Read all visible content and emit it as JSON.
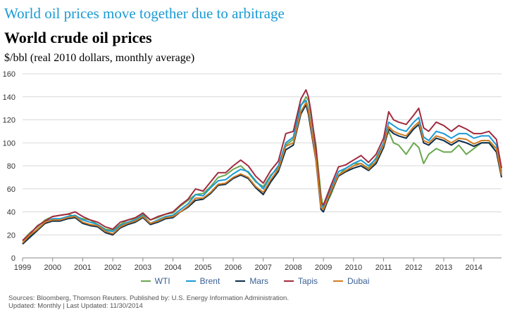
{
  "headline": "World oil prices move together due to arbitrage",
  "chart_data": {
    "type": "line",
    "title": "World crude oil prices",
    "subtitle": "$/bbl (real 2010 dollars, monthly average)",
    "xlabel": "",
    "ylabel": "$/bbl",
    "ylim": [
      0,
      160
    ],
    "yticks": [
      0,
      20,
      40,
      60,
      80,
      100,
      120,
      140,
      160
    ],
    "xlim": [
      1999,
      2014.92
    ],
    "xticks": [
      "1999",
      "2000",
      "2001",
      "2002",
      "2003",
      "2004",
      "2005",
      "2006",
      "2007",
      "2008",
      "2009",
      "2010",
      "2011",
      "2012",
      "2013",
      "2014"
    ],
    "grid": "horizontal",
    "legend_position": "bottom-center",
    "x": [
      1999.0,
      1999.25,
      1999.5,
      1999.75,
      2000.0,
      2000.25,
      2000.5,
      2000.75,
      2001.0,
      2001.25,
      2001.5,
      2001.75,
      2002.0,
      2002.25,
      2002.5,
      2002.75,
      2003.0,
      2003.25,
      2003.5,
      2003.75,
      2004.0,
      2004.25,
      2004.5,
      2004.75,
      2005.0,
      2005.25,
      2005.5,
      2005.75,
      2006.0,
      2006.25,
      2006.5,
      2006.75,
      2007.0,
      2007.25,
      2007.5,
      2007.75,
      2008.0,
      2008.25,
      2008.42,
      2008.5,
      2008.58,
      2008.75,
      2008.92,
      2009.0,
      2009.25,
      2009.5,
      2009.75,
      2010.0,
      2010.25,
      2010.5,
      2010.75,
      2011.0,
      2011.17,
      2011.33,
      2011.5,
      2011.75,
      2012.0,
      2012.17,
      2012.33,
      2012.5,
      2012.75,
      2013.0,
      2013.25,
      2013.5,
      2013.75,
      2014.0,
      2014.25,
      2014.5,
      2014.75,
      2014.92
    ],
    "series": [
      {
        "name": "WTI",
        "color": "#6aa84f",
        "values": [
          15,
          22,
          27,
          33,
          36,
          37,
          38,
          36,
          34,
          33,
          29,
          25,
          24,
          29,
          33,
          34,
          38,
          33,
          35,
          38,
          39,
          45,
          50,
          55,
          56,
          62,
          70,
          72,
          77,
          80,
          74,
          66,
          62,
          72,
          78,
          98,
          103,
          132,
          140,
          137,
          125,
          98,
          55,
          42,
          55,
          72,
          78,
          82,
          82,
          78,
          87,
          100,
          110,
          100,
          98,
          90,
          100,
          96,
          82,
          90,
          95,
          92,
          92,
          98,
          90,
          95,
          100,
          100,
          95,
          73
        ]
      },
      {
        "name": "Brent",
        "color": "#1a9ad6",
        "values": [
          13,
          19,
          25,
          31,
          34,
          34,
          36,
          37,
          33,
          31,
          29,
          24,
          23,
          28,
          31,
          33,
          37,
          30,
          33,
          36,
          37,
          42,
          47,
          55,
          54,
          61,
          67,
          68,
          73,
          77,
          75,
          67,
          60,
          71,
          80,
          100,
          105,
          133,
          137,
          129,
          117,
          88,
          46,
          44,
          60,
          75,
          78,
          82,
          85,
          80,
          86,
          100,
          118,
          115,
          112,
          110,
          118,
          122,
          105,
          102,
          110,
          108,
          104,
          108,
          108,
          104,
          106,
          106,
          98,
          75
        ]
      },
      {
        "name": "Mars",
        "color": "#0a2d4a",
        "values": [
          12,
          18,
          24,
          30,
          32,
          32,
          34,
          35,
          30,
          28,
          27,
          22,
          20,
          26,
          29,
          31,
          35,
          29,
          31,
          34,
          35,
          40,
          44,
          50,
          51,
          56,
          63,
          64,
          69,
          72,
          69,
          61,
          55,
          66,
          75,
          94,
          98,
          125,
          133,
          125,
          112,
          85,
          42,
          40,
          57,
          71,
          75,
          78,
          80,
          76,
          82,
          96,
          112,
          108,
          106,
          104,
          112,
          116,
          100,
          98,
          104,
          102,
          98,
          102,
          100,
          97,
          100,
          100,
          92,
          70
        ]
      },
      {
        "name": "Tapis",
        "color": "#a12b3f",
        "values": [
          15,
          21,
          28,
          32,
          36,
          37,
          38,
          40,
          36,
          33,
          31,
          27,
          25,
          31,
          33,
          35,
          39,
          33,
          36,
          38,
          40,
          46,
          51,
          60,
          58,
          66,
          74,
          74,
          80,
          85,
          80,
          71,
          65,
          76,
          84,
          108,
          110,
          138,
          146,
          140,
          128,
          95,
          48,
          46,
          63,
          79,
          81,
          85,
          89,
          83,
          90,
          104,
          127,
          120,
          118,
          116,
          124,
          130,
          113,
          110,
          118,
          115,
          110,
          115,
          112,
          108,
          108,
          110,
          103,
          78
        ]
      },
      {
        "name": "Dubai",
        "color": "#d07b22",
        "values": [
          13,
          20,
          25,
          31,
          33,
          33,
          35,
          36,
          31,
          29,
          28,
          23,
          21,
          27,
          30,
          32,
          36,
          30,
          32,
          35,
          36,
          40,
          45,
          52,
          52,
          57,
          64,
          65,
          70,
          73,
          70,
          62,
          57,
          68,
          77,
          97,
          100,
          127,
          135,
          128,
          115,
          86,
          44,
          42,
          58,
          72,
          76,
          80,
          82,
          77,
          84,
          98,
          114,
          110,
          108,
          106,
          114,
          118,
          102,
          100,
          106,
          104,
          100,
          104,
          103,
          99,
          102,
          102,
          95,
          72
        ]
      }
    ]
  },
  "footer": {
    "sources": "Sources: Bloomberg, Thomson Reuters. Published by: U.S. Energy Information Administration.",
    "updated": "Updated: Monthly | Last Updated: 11/30/2014"
  }
}
